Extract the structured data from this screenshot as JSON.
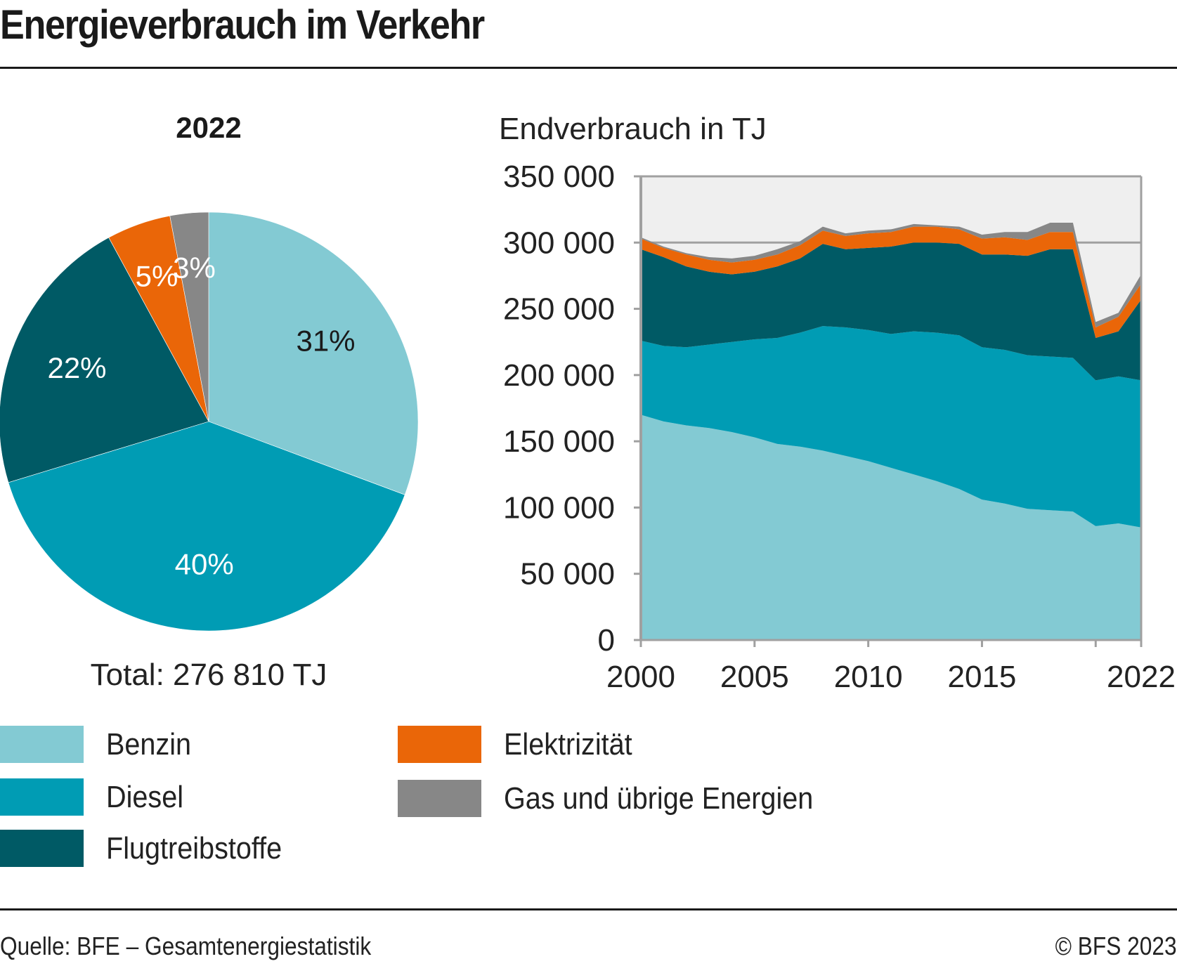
{
  "title": "Energieverbrauch im Verkehr",
  "footer": {
    "source": "Quelle: BFE – Gesamtenergiestatistik",
    "copyright": "© BFS 2023"
  },
  "colors": {
    "Benzin": "#83CAD3",
    "Diesel": "#009CB4",
    "Flugtreibstoffe": "#005A65",
    "Elektrizität": "#EA6608",
    "Gas und übrige Energien": "#878787",
    "plot_bg": "#EFEFEF",
    "axis": "#A0A0A0"
  },
  "legend": [
    {
      "name": "Benzin"
    },
    {
      "name": "Diesel"
    },
    {
      "name": "Flugtreibstoffe"
    },
    {
      "name": "Elektrizität"
    },
    {
      "name": "Gas und übrige Energien"
    }
  ],
  "chart_data": [
    {
      "type": "pie",
      "title": "2022",
      "total_label": "Total: 276 810 TJ",
      "slices": [
        {
          "name": "Benzin",
          "value": 31,
          "label": "31%"
        },
        {
          "name": "Diesel",
          "value": 40,
          "label": "40%"
        },
        {
          "name": "Flugtreibstoffe",
          "value": 22,
          "label": "22%"
        },
        {
          "name": "Elektrizität",
          "value": 5,
          "label": "5%"
        },
        {
          "name": "Gas und übrige Energien",
          "value": 3,
          "label": "3%"
        }
      ],
      "start": "12 o'clock, clockwise"
    },
    {
      "type": "area",
      "stacked": true,
      "title": "",
      "ylabel": "Endverbrauch in TJ",
      "xlabel": "",
      "ylim": [
        0,
        350000
      ],
      "yticks": [
        0,
        50000,
        100000,
        150000,
        200000,
        250000,
        300000,
        350000
      ],
      "ytick_labels": [
        "0",
        "50 000",
        "100 000",
        "150 000",
        "200 000",
        "250 000",
        "300 000",
        "350 000"
      ],
      "xlim": [
        2000,
        2022
      ],
      "xticks": [
        2000,
        2005,
        2010,
        2015,
        2020,
        2022
      ],
      "xtick_labels": [
        "2000",
        "2005",
        "2010",
        "2015",
        "",
        "2022"
      ],
      "grid": "horizontal at 300 000",
      "x": [
        2000,
        2001,
        2002,
        2003,
        2004,
        2005,
        2006,
        2007,
        2008,
        2009,
        2010,
        2011,
        2012,
        2013,
        2014,
        2015,
        2016,
        2017,
        2018,
        2019,
        2020,
        2021,
        2022
      ],
      "series": [
        {
          "name": "Benzin",
          "values": [
            170000,
            165000,
            162000,
            160000,
            157000,
            153000,
            148000,
            146000,
            143000,
            139000,
            135000,
            130000,
            125000,
            120000,
            114000,
            106000,
            103000,
            99000,
            98000,
            97000,
            86000,
            88000,
            85000
          ]
        },
        {
          "name": "Diesel",
          "values": [
            56000,
            57000,
            59000,
            63000,
            68000,
            74000,
            80000,
            86000,
            94000,
            97000,
            99000,
            101000,
            108000,
            112000,
            116000,
            115000,
            116000,
            116000,
            116000,
            116000,
            110000,
            111000,
            111000
          ]
        },
        {
          "name": "Flugtreibstoffe",
          "values": [
            69000,
            67000,
            61000,
            55000,
            51000,
            51000,
            54000,
            56000,
            62000,
            59000,
            62000,
            66000,
            67000,
            68000,
            69000,
            70000,
            72000,
            75000,
            81000,
            82000,
            32000,
            34000,
            61000
          ]
        },
        {
          "name": "Elektrizität",
          "values": [
            8000,
            7000,
            9000,
            9000,
            9000,
            9000,
            9000,
            10000,
            10000,
            10000,
            11000,
            11000,
            12000,
            12000,
            11000,
            12000,
            13000,
            12000,
            13000,
            13000,
            8000,
            11000,
            12000
          ]
        },
        {
          "name": "Gas und übrige Energien",
          "values": [
            1000,
            1000,
            1000,
            2000,
            3000,
            3000,
            4000,
            3000,
            3000,
            2000,
            2000,
            2000,
            2000,
            1000,
            2000,
            3000,
            4000,
            6000,
            7000,
            7000,
            4000,
            3000,
            7000
          ]
        }
      ]
    }
  ]
}
